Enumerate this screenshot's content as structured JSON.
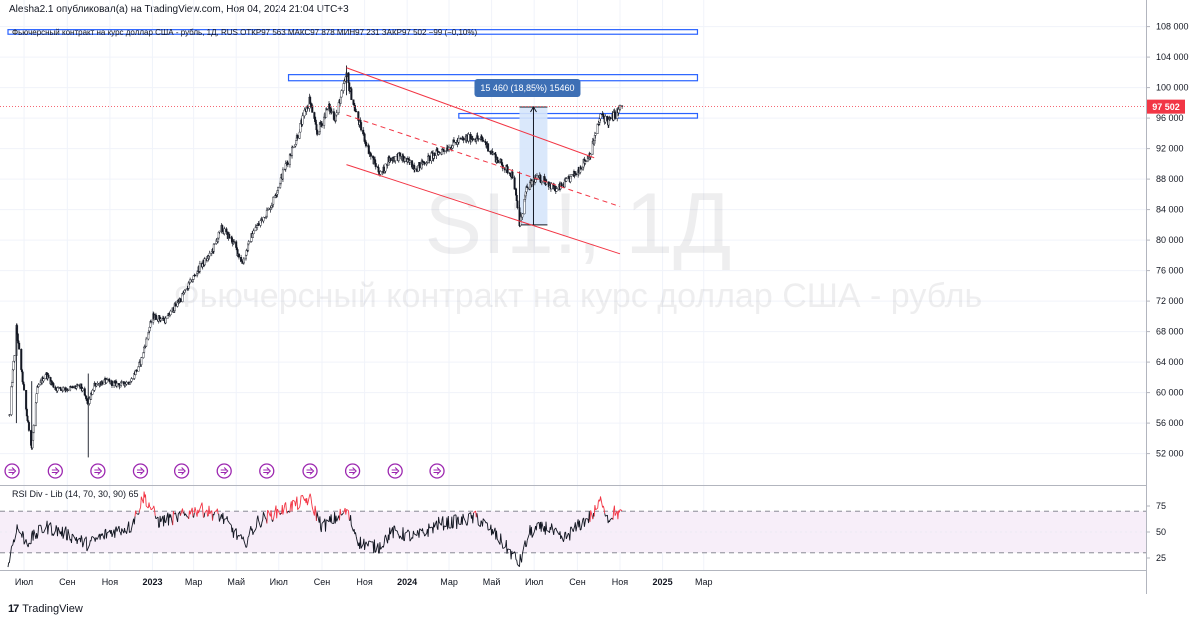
{
  "header": {
    "title_line": "Alesha2.1 опубликовал(а) на TradingView.com, Ноя 04, 2024 21:04 UTC+3"
  },
  "legend": {
    "text": "Фьючерсный контракт на курс доллар США - рубль, 1Д, RUS  ОТКР97 563  МАКС97 878  МИН97 231  ЗАКР97 502  −99 (−0,10%)"
  },
  "watermark": {
    "symbol": "SI1!, 1Д",
    "description": "Фьючерсный контракт на курс доллар США - рубль"
  },
  "price_axis": {
    "ticks": [
      "108 000",
      "104 000",
      "100 000",
      "96 000",
      "92 000",
      "88 000",
      "84 000",
      "80 000",
      "76 000",
      "72 000",
      "68 000",
      "64 000",
      "60 000",
      "56 000",
      "52 000"
    ],
    "last_price_label": "97 502",
    "last_price_color": "#f23645"
  },
  "rsi_axis": {
    "ticks": [
      "75",
      "50",
      "25"
    ]
  },
  "rsi_panel": {
    "legend": "RSI Div - Lib (14, 70, 30, 90)  65",
    "upper_band": 70,
    "lower_band": 30
  },
  "measure_tool": {
    "label": "15 460 (18,85%) 15460"
  },
  "time_axis": {
    "labels": [
      {
        "text": "Июл",
        "year": false
      },
      {
        "text": "Сен",
        "year": false
      },
      {
        "text": "Ноя",
        "year": false
      },
      {
        "text": "2023",
        "year": true
      },
      {
        "text": "Мар",
        "year": false
      },
      {
        "text": "Май",
        "year": false
      },
      {
        "text": "Июл",
        "year": false
      },
      {
        "text": "Сен",
        "year": false
      },
      {
        "text": "Ноя",
        "year": false
      },
      {
        "text": "2024",
        "year": true
      },
      {
        "text": "Мар",
        "year": false
      },
      {
        "text": "Май",
        "year": false
      },
      {
        "text": "Июл",
        "year": false
      },
      {
        "text": "Сен",
        "year": false
      },
      {
        "text": "Ноя",
        "year": false
      },
      {
        "text": "2025",
        "year": true
      },
      {
        "text": "Мар",
        "year": false
      }
    ]
  },
  "footer": {
    "brand": "TradingView",
    "logo_mark": "17"
  },
  "colors": {
    "candle": "#131722",
    "channel": "#f23645",
    "zone_border": "#2962ff",
    "measure_fill": "#d6e6fb",
    "measure_label_bg": "#3d6fb5",
    "rsi_line": "#131722",
    "rsi_overbought": "#f23645",
    "rsi_band_fill": "#f7eef9",
    "event_icon": "#9c27b0"
  },
  "chart_data": {
    "type": "candlestick",
    "symbol": "SI1!",
    "timeframe": "1Д",
    "ylim": [
      50000,
      110000
    ],
    "last": {
      "open": 97563,
      "high": 97878,
      "low": 97231,
      "close": 97502,
      "change": -99,
      "change_pct": -0.1
    },
    "price_anchors": [
      {
        "date": "2022-06-10",
        "close": 57000
      },
      {
        "date": "2022-06-20",
        "close": 68500
      },
      {
        "date": "2022-07-05",
        "close": 57000
      },
      {
        "date": "2022-07-12",
        "close": 52800
      },
      {
        "date": "2022-07-20",
        "close": 60500
      },
      {
        "date": "2022-08-01",
        "close": 62500
      },
      {
        "date": "2022-08-15",
        "close": 60500
      },
      {
        "date": "2022-09-01",
        "close": 60500
      },
      {
        "date": "2022-09-20",
        "close": 60800
      },
      {
        "date": "2022-10-01",
        "close": 58500
      },
      {
        "date": "2022-10-10",
        "close": 61000
      },
      {
        "date": "2022-10-25",
        "close": 61500
      },
      {
        "date": "2022-11-15",
        "close": 61000
      },
      {
        "date": "2022-12-01",
        "close": 61500
      },
      {
        "date": "2022-12-15",
        "close": 64000
      },
      {
        "date": "2023-01-01",
        "close": 70000
      },
      {
        "date": "2023-01-20",
        "close": 69500
      },
      {
        "date": "2023-02-15",
        "close": 73000
      },
      {
        "date": "2023-03-10",
        "close": 76500
      },
      {
        "date": "2023-03-25",
        "close": 78000
      },
      {
        "date": "2023-04-10",
        "close": 81500
      },
      {
        "date": "2023-04-25",
        "close": 80000
      },
      {
        "date": "2023-05-10",
        "close": 77000
      },
      {
        "date": "2023-05-25",
        "close": 81000
      },
      {
        "date": "2023-06-20",
        "close": 84500
      },
      {
        "date": "2023-07-10",
        "close": 89500
      },
      {
        "date": "2023-07-25",
        "close": 93000
      },
      {
        "date": "2023-08-14",
        "close": 98500
      },
      {
        "date": "2023-08-25",
        "close": 94000
      },
      {
        "date": "2023-09-10",
        "close": 97500
      },
      {
        "date": "2023-09-20",
        "close": 96000
      },
      {
        "date": "2023-10-06",
        "close": 101500
      },
      {
        "date": "2023-10-20",
        "close": 96500
      },
      {
        "date": "2023-11-10",
        "close": 91000
      },
      {
        "date": "2023-11-25",
        "close": 88500
      },
      {
        "date": "2023-12-05",
        "close": 90500
      },
      {
        "date": "2023-12-20",
        "close": 91000
      },
      {
        "date": "2024-01-15",
        "close": 89500
      },
      {
        "date": "2024-02-05",
        "close": 91000
      },
      {
        "date": "2024-02-25",
        "close": 92000
      },
      {
        "date": "2024-03-15",
        "close": 93000
      },
      {
        "date": "2024-04-05",
        "close": 93500
      },
      {
        "date": "2024-04-20",
        "close": 93000
      },
      {
        "date": "2024-05-05",
        "close": 91000
      },
      {
        "date": "2024-05-20",
        "close": 89500
      },
      {
        "date": "2024-06-01",
        "close": 88500
      },
      {
        "date": "2024-06-10",
        "close": 82000
      },
      {
        "date": "2024-06-20",
        "close": 86500
      },
      {
        "date": "2024-07-01",
        "close": 88000
      },
      {
        "date": "2024-07-15",
        "close": 88000
      },
      {
        "date": "2024-08-01",
        "close": 86500
      },
      {
        "date": "2024-08-15",
        "close": 87500
      },
      {
        "date": "2024-09-01",
        "close": 89000
      },
      {
        "date": "2024-09-20",
        "close": 91500
      },
      {
        "date": "2024-10-05",
        "close": 96500
      },
      {
        "date": "2024-10-15",
        "close": 95500
      },
      {
        "date": "2024-10-25",
        "close": 96500
      },
      {
        "date": "2024-11-04",
        "close": 97502
      }
    ],
    "drawings": {
      "zones": [
        {
          "from": "2022-06-08",
          "to": "2025-02-20",
          "low": 107000,
          "high": 107600
        },
        {
          "from": "2023-07-15",
          "to": "2025-02-20",
          "low": 100900,
          "high": 101700
        },
        {
          "from": "2024-03-15",
          "to": "2025-02-20",
          "low": 96000,
          "high": 96600
        }
      ],
      "channel_upper": {
        "from": {
          "date": "2023-10-06",
          "price": 102600
        },
        "to": {
          "date": "2024-09-25",
          "price": 90800
        }
      },
      "channel_mid": {
        "from": {
          "date": "2023-10-06",
          "price": 96400
        },
        "to": {
          "date": "2024-11-01",
          "price": 84400
        }
      },
      "channel_lower": {
        "from": {
          "date": "2023-10-06",
          "price": 89900
        },
        "to": {
          "date": "2024-11-01",
          "price": 78200
        }
      },
      "measure": {
        "from": "2024-06-10",
        "to": "2024-07-20",
        "low": 82000,
        "high": 97460
      }
    },
    "rsi": {
      "period": 14,
      "overbought": 70,
      "oversold": 30,
      "ylim": [
        10,
        95
      ],
      "anchors": [
        {
          "date": "2022-06-08",
          "value": 18
        },
        {
          "date": "2022-06-20",
          "value": 55
        },
        {
          "date": "2022-07-05",
          "value": 40
        },
        {
          "date": "2022-08-01",
          "value": 55
        },
        {
          "date": "2022-09-01",
          "value": 48
        },
        {
          "date": "2022-10-01",
          "value": 38
        },
        {
          "date": "2022-11-01",
          "value": 50
        },
        {
          "date": "2022-12-01",
          "value": 55
        },
        {
          "date": "2022-12-20",
          "value": 85
        },
        {
          "date": "2023-01-10",
          "value": 60
        },
        {
          "date": "2023-02-10",
          "value": 65
        },
        {
          "date": "2023-03-10",
          "value": 72
        },
        {
          "date": "2023-04-10",
          "value": 65
        },
        {
          "date": "2023-05-12",
          "value": 38
        },
        {
          "date": "2023-06-01",
          "value": 60
        },
        {
          "date": "2023-07-01",
          "value": 70
        },
        {
          "date": "2023-08-14",
          "value": 82
        },
        {
          "date": "2023-09-01",
          "value": 55
        },
        {
          "date": "2023-10-06",
          "value": 70
        },
        {
          "date": "2023-10-25",
          "value": 40
        },
        {
          "date": "2023-11-20",
          "value": 35
        },
        {
          "date": "2023-12-10",
          "value": 50
        },
        {
          "date": "2024-01-15",
          "value": 45
        },
        {
          "date": "2024-02-15",
          "value": 58
        },
        {
          "date": "2024-03-15",
          "value": 60
        },
        {
          "date": "2024-04-10",
          "value": 64
        },
        {
          "date": "2024-05-10",
          "value": 45
        },
        {
          "date": "2024-06-10",
          "value": 20
        },
        {
          "date": "2024-06-25",
          "value": 50
        },
        {
          "date": "2024-07-20",
          "value": 55
        },
        {
          "date": "2024-08-10",
          "value": 42
        },
        {
          "date": "2024-09-01",
          "value": 55
        },
        {
          "date": "2024-09-25",
          "value": 68
        },
        {
          "date": "2024-10-06",
          "value": 82
        },
        {
          "date": "2024-10-15",
          "value": 62
        },
        {
          "date": "2024-10-25",
          "value": 70
        },
        {
          "date": "2024-11-04",
          "value": 65
        }
      ]
    }
  }
}
